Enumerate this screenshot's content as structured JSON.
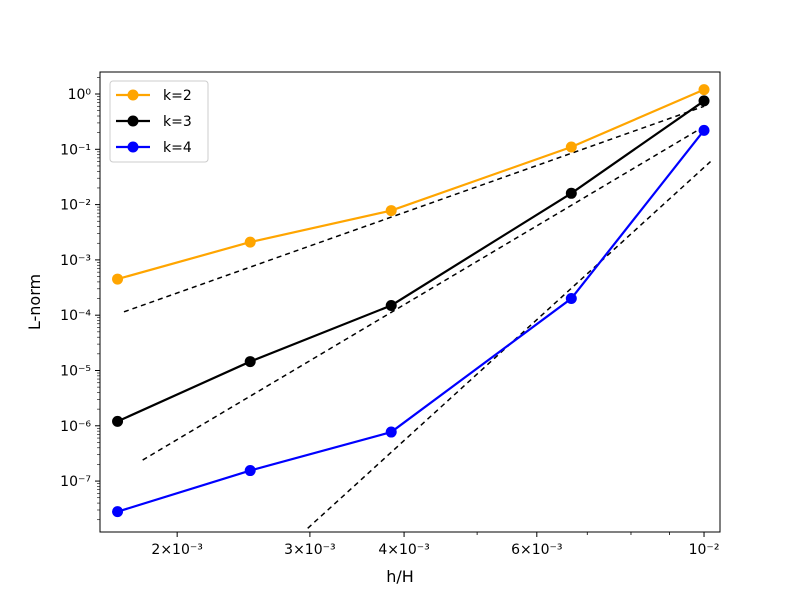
{
  "chart_data": {
    "type": "line",
    "title": "",
    "xlabel": "h/H",
    "ylabel": "L-norm",
    "xscale": "log",
    "yscale": "log",
    "xlim": [
      0.00158,
      0.0105
    ],
    "ylim": [
      1.2e-08,
      2.5
    ],
    "grid": false,
    "legend_position": "top-left",
    "x": [
      0.001667,
      0.0025,
      0.003846,
      0.006667,
      0.01
    ],
    "x_ticks": [
      {
        "value": 0.002,
        "label": "2×10⁻³"
      },
      {
        "value": 0.003,
        "label": "3×10⁻³"
      },
      {
        "value": 0.004,
        "label": "4×10⁻³"
      },
      {
        "value": 0.006,
        "label": "6×10⁻³"
      },
      {
        "value": 0.01,
        "label": "10⁻²"
      }
    ],
    "y_ticks": [
      {
        "value": 1e-07,
        "label": "10⁻⁷"
      },
      {
        "value": 1e-06,
        "label": "10⁻⁶"
      },
      {
        "value": 1e-05,
        "label": "10⁻⁵"
      },
      {
        "value": 0.0001,
        "label": "10⁻⁴"
      },
      {
        "value": 0.001,
        "label": "10⁻³"
      },
      {
        "value": 0.01,
        "label": "10⁻²"
      },
      {
        "value": 0.1,
        "label": "10⁻¹"
      },
      {
        "value": 1,
        "label": "10⁰"
      }
    ],
    "series": [
      {
        "name": "k=2",
        "color": "#FFA500",
        "marker": "circle",
        "values": [
          0.00045,
          0.0021,
          0.0078,
          0.11,
          1.2
        ]
      },
      {
        "name": "k=3",
        "color": "#000000",
        "marker": "circle",
        "values": [
          1.2e-06,
          1.45e-05,
          0.00015,
          0.016,
          0.75
        ]
      },
      {
        "name": "k=4",
        "color": "#0000FF",
        "marker": "circle",
        "values": [
          2.8e-08,
          1.55e-07,
          7.7e-07,
          0.0002,
          0.22
        ]
      }
    ],
    "reference_lines": [
      {
        "style": "dashed",
        "color": "#000000",
        "x": [
          0.0017,
          0.01
        ],
        "y": [
          0.000115,
          0.6
        ]
      },
      {
        "style": "dashed",
        "color": "#000000",
        "x": [
          0.0018,
          0.0101
        ],
        "y": [
          2.4e-07,
          0.28
        ]
      },
      {
        "style": "dashed",
        "color": "#000000",
        "x": [
          0.00298,
          0.0102
        ],
        "y": [
          1.4e-08,
          0.06
        ]
      }
    ]
  }
}
